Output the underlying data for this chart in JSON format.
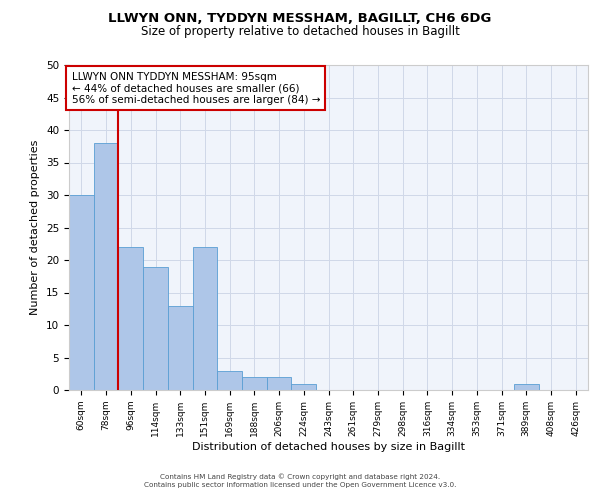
{
  "title1": "LLWYN ONN, TYDDYN MESSHAM, BAGILLT, CH6 6DG",
  "title2": "Size of property relative to detached houses in Bagillt",
  "xlabel": "Distribution of detached houses by size in Bagillt",
  "ylabel": "Number of detached properties",
  "categories": [
    "60sqm",
    "78sqm",
    "96sqm",
    "114sqm",
    "133sqm",
    "151sqm",
    "169sqm",
    "188sqm",
    "206sqm",
    "224sqm",
    "243sqm",
    "261sqm",
    "279sqm",
    "298sqm",
    "316sqm",
    "334sqm",
    "353sqm",
    "371sqm",
    "389sqm",
    "408sqm",
    "426sqm"
  ],
  "values": [
    30,
    38,
    22,
    19,
    13,
    22,
    3,
    2,
    2,
    1,
    0,
    0,
    0,
    0,
    0,
    0,
    0,
    0,
    1,
    0,
    0
  ],
  "bar_color": "#aec6e8",
  "bar_edge_color": "#5a9fd4",
  "red_line_index": 2,
  "red_line_color": "#cc0000",
  "annotation_line1": "LLWYN ONN TYDDYN MESSHAM: 95sqm",
  "annotation_line2": "← 44% of detached houses are smaller (66)",
  "annotation_line3": "56% of semi-detached houses are larger (84) →",
  "annotation_box_color": "#ffffff",
  "annotation_box_edge": "#cc0000",
  "ylim": [
    0,
    50
  ],
  "yticks": [
    0,
    5,
    10,
    15,
    20,
    25,
    30,
    35,
    40,
    45,
    50
  ],
  "grid_color": "#d0d8e8",
  "bg_color": "#f0f4fb",
  "footer1": "Contains HM Land Registry data © Crown copyright and database right 2024.",
  "footer2": "Contains public sector information licensed under the Open Government Licence v3.0."
}
